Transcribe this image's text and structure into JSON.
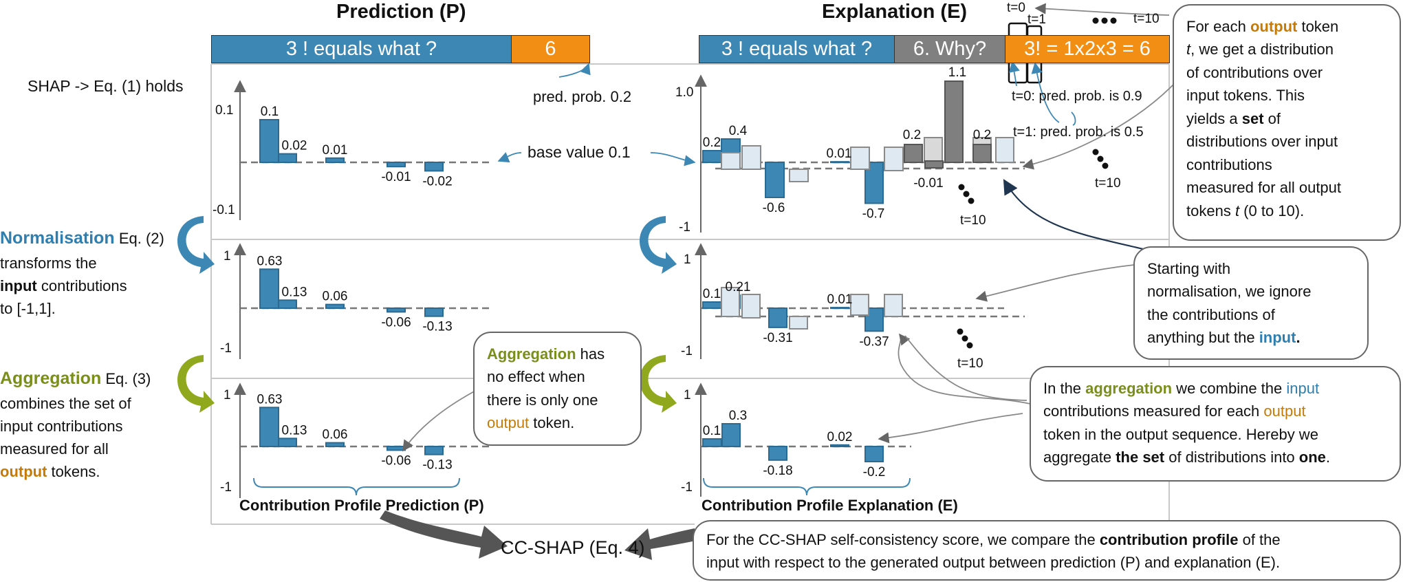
{
  "headers": {
    "prediction": "Prediction (P)",
    "explanation": "Explanation (E)"
  },
  "pred_sequence": {
    "input": "3 !  equals what ?",
    "output": "6"
  },
  "expl_sequence": {
    "input": "3 ! equals what ?",
    "mid": "6. Why?",
    "output": "3! = 1x2x3 = 6"
  },
  "token_markers": {
    "t0": "t=0",
    "t1": "t=1",
    "dots": "●●●",
    "t10": "t=10"
  },
  "notes": {
    "shap_holds": "SHAP -> Eq. (1) holds",
    "pred_prob": "pred. prob. 0.2",
    "base_value": "base value 0.1",
    "t0_prob": "t=0: pred. prob. is 0.9",
    "t1_prob": "t=1: pred. prob. is 0.5",
    "t10": "t=10",
    "cc_shap": "CC-SHAP (Eq. 4)",
    "profile_p": "Contribution Profile Prediction (P)",
    "profile_e": "Contribution Profile Explanation (E)"
  },
  "row_labels": {
    "norm": {
      "title": "Normalisation",
      "eq": " Eq. (2)",
      "l2": "transforms the",
      "l3a": "input",
      "l3b": " contributions",
      "l4": "to [-1,1]."
    },
    "agg": {
      "title": "Aggregation",
      "eq": " Eq. (3)",
      "l2": "combines the set of",
      "l3": "input contributions",
      "l4": "measured for all",
      "l5a": "output",
      "l5b": " tokens."
    }
  },
  "axis_ticks": {
    "p_top": [
      "0.1",
      "-0.1"
    ],
    "e_top": [
      "1.0",
      "-1"
    ],
    "unit": [
      "1",
      "-1"
    ]
  },
  "bubbles": {
    "right_top": {
      "l1a": "For each ",
      "l1b": "output",
      "l1c": " token",
      "l2a": "t",
      "l2b": ", we get a distribution",
      "l3": "of contributions over",
      "l4": "input tokens. This",
      "l5a": "yields a ",
      "l5b": "set",
      "l5c": " of",
      "l6": "distributions over input",
      "l7": "contributions",
      "l8": "measured for all output",
      "l9a": "tokens ",
      "l9b": "t",
      "l9c": " (0 to 10)."
    },
    "right_mid": {
      "l1": "Starting with",
      "l2": "normalisation, we ignore",
      "l3": "the contributions of",
      "l4a": "anything but the ",
      "l4b": "input",
      "l4c": "."
    },
    "right_agg": {
      "l1a": "In the ",
      "l1b": "aggregation",
      "l1c": " we combine the ",
      "l1d": "input",
      "l2a": "contributions measured for each ",
      "l2b": "output",
      "l3": "token in the output sequence. Hereby we",
      "l4a": "aggregate ",
      "l4b": "the set",
      "l4c": " of distributions into ",
      "l4d": "one",
      "l4e": "."
    },
    "agg_mid": {
      "l1a": "Aggregation",
      "l1b": " has",
      "l2": "no effect when",
      "l3": "there is only one",
      "l4a": "output",
      "l4b": " token."
    },
    "bottom": {
      "l1a": "For the CC-SHAP self-consistency score, we compare the ",
      "l1b": "contribution profile",
      "l1c": " of the",
      "l2": "input with respect to the generated output between prediction (P) and explanation (E)."
    }
  },
  "colors": {
    "blue": "#3d87b5",
    "orange": "#f28e13",
    "gray": "#808080",
    "lightbar": "#dfe9f1",
    "graybar": "#d9d9d9",
    "green": "#8fa81e"
  },
  "chart_data": [
    {
      "type": "bar",
      "panel": "prediction-shap",
      "values": [
        0.1,
        0.02,
        0.01,
        -0.01,
        -0.02
      ],
      "labels": [
        "0.1",
        "0.02",
        "0.01",
        "-0.01",
        "-0.02"
      ],
      "ylim": [
        -0.1,
        0.1
      ],
      "baseline": 0.1
    },
    {
      "type": "bar",
      "panel": "prediction-normalised",
      "values": [
        0.63,
        0.13,
        0.06,
        -0.06,
        -0.13
      ],
      "labels": [
        "0.63",
        "0.13",
        "0.06",
        "-0.06",
        "-0.13"
      ],
      "ylim": [
        -1,
        1
      ]
    },
    {
      "type": "bar",
      "panel": "prediction-aggregated",
      "values": [
        0.63,
        0.13,
        0.06,
        -0.06,
        -0.13
      ],
      "labels": [
        "0.63",
        "0.13",
        "0.06",
        "-0.06",
        "-0.13"
      ],
      "ylim": [
        -1,
        1
      ]
    },
    {
      "type": "bar",
      "panel": "explanation-shap",
      "input_values": [
        0.2,
        0.4,
        -0.6,
        0.01,
        -0.7
      ],
      "input_labels": [
        "0.2",
        "0.4",
        "-0.6",
        "0.01",
        "-0.7"
      ],
      "other_values": [
        0.2,
        -0.01,
        1.1,
        0.2
      ],
      "other_labels": [
        "0.2",
        "-0.01",
        "1.1",
        "0.2"
      ],
      "ylim": [
        -1,
        1.0
      ]
    },
    {
      "type": "bar",
      "panel": "explanation-normalised",
      "values": [
        0.1,
        0.21,
        -0.31,
        0.01,
        -0.37
      ],
      "labels": [
        "0.1",
        "0.21",
        "-0.31",
        "0.01",
        "-0.37"
      ],
      "ylim": [
        -1,
        1
      ]
    },
    {
      "type": "bar",
      "panel": "explanation-aggregated",
      "values": [
        0.1,
        0.3,
        -0.18,
        0.02,
        -0.2
      ],
      "labels": [
        "0.1",
        "0.3",
        "-0.18",
        "0.02",
        "-0.2"
      ],
      "ylim": [
        -1,
        1
      ]
    }
  ]
}
